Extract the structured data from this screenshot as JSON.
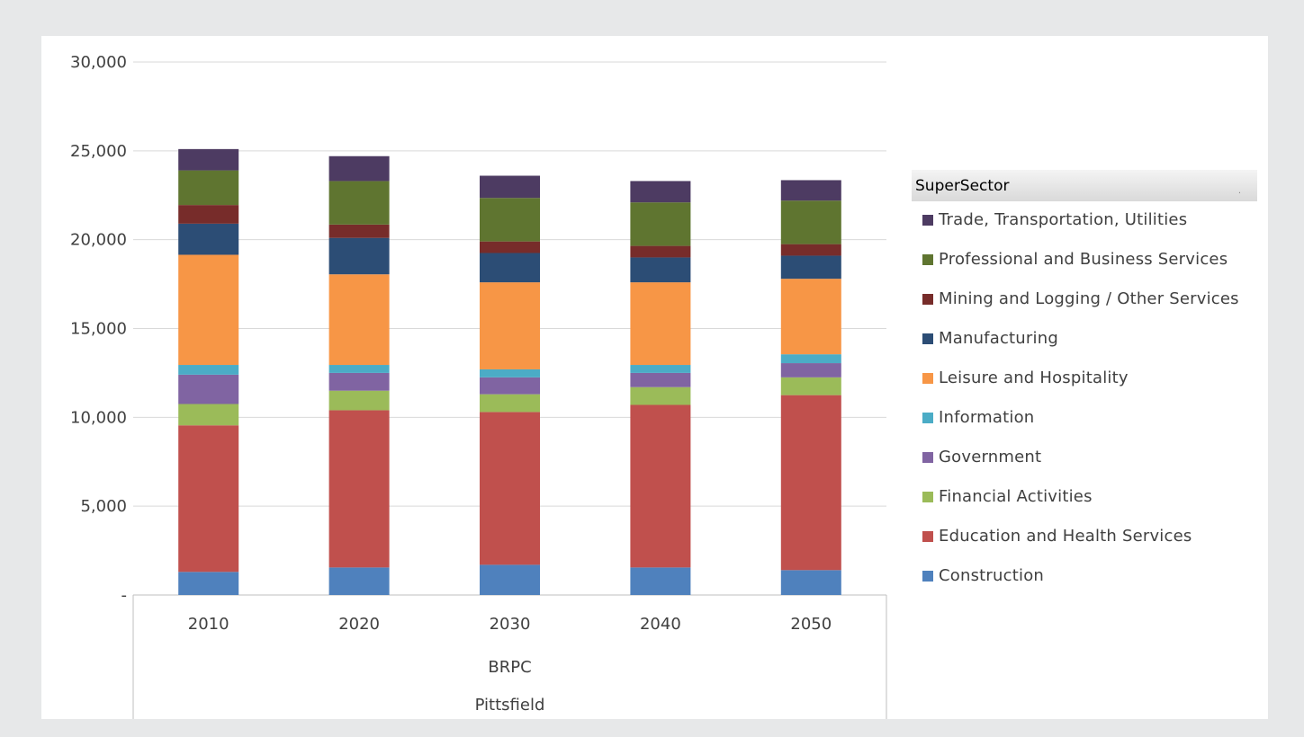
{
  "legend": {
    "title": "SuperSector",
    "menu_glyph": "·"
  },
  "chart_data": {
    "type": "bar",
    "stacked": true,
    "categories": [
      "2010",
      "2020",
      "2030",
      "2040",
      "2050"
    ],
    "group_labels": [
      "BRPC",
      "Pittsfield"
    ],
    "ylim": [
      0,
      30000
    ],
    "yticks": [
      {
        "value": 0,
        "label": "-"
      },
      {
        "value": 5000,
        "label": "5,000"
      },
      {
        "value": 10000,
        "label": "10,000"
      },
      {
        "value": 15000,
        "label": "15,000"
      },
      {
        "value": 20000,
        "label": "20,000"
      },
      {
        "value": 25000,
        "label": "25,000"
      },
      {
        "value": 30000,
        "label": "30,000"
      }
    ],
    "grid": true,
    "legend_position": "right",
    "series": [
      {
        "name": "Construction",
        "color": "#4f81bd",
        "values": [
          1300,
          1550,
          1700,
          1550,
          1400
        ]
      },
      {
        "name": "Education and Health Services",
        "color": "#c0504d",
        "values": [
          8250,
          8850,
          8600,
          9150,
          9850
        ]
      },
      {
        "name": "Financial Activities",
        "color": "#9bbb59",
        "values": [
          1200,
          1100,
          1000,
          1000,
          1000
        ]
      },
      {
        "name": "Government",
        "color": "#8064a2",
        "values": [
          1650,
          1000,
          950,
          800,
          800
        ]
      },
      {
        "name": "Information",
        "color": "#4bacc6",
        "values": [
          550,
          450,
          450,
          450,
          500
        ]
      },
      {
        "name": "Leisure and Hospitality",
        "color": "#f79646",
        "values": [
          6200,
          5100,
          4900,
          4650,
          4250
        ]
      },
      {
        "name": "Manufacturing",
        "color": "#2c4d75",
        "values": [
          1750,
          2050,
          1650,
          1400,
          1300
        ]
      },
      {
        "name": "Mining and Logging / Other Services",
        "color": "#772c2a",
        "values": [
          1050,
          750,
          650,
          650,
          650
        ]
      },
      {
        "name": "Professional and Business Services",
        "color": "#5f7530",
        "values": [
          1950,
          2450,
          2450,
          2450,
          2450
        ]
      },
      {
        "name": "Trade, Transportation, Utilities",
        "color": "#4d3b62",
        "values": [
          1200,
          1400,
          1250,
          1200,
          1150
        ]
      }
    ]
  }
}
